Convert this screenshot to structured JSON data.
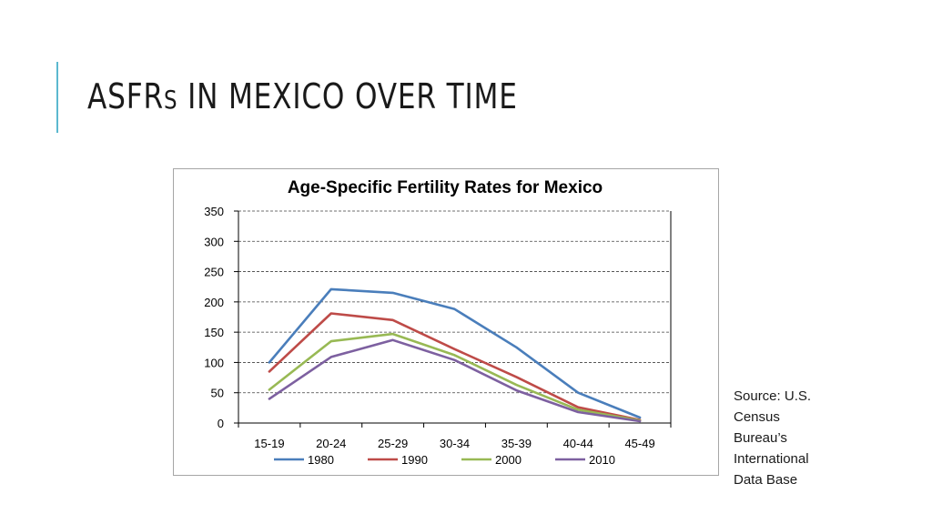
{
  "slide": {
    "title_main": "ASFR",
    "title_small": "S",
    "title_rest": " IN MEXICO OVER TIME",
    "accent_color": "#5bb8cf"
  },
  "source": {
    "lines": [
      "Source: U.S.",
      "Census",
      "Bureau’s",
      "International",
      "Data Base"
    ]
  },
  "chart_data": {
    "type": "line",
    "title": "Age-Specific Fertility Rates for Mexico",
    "xlabel": "",
    "ylabel": "",
    "categories": [
      "15-19",
      "20-24",
      "25-29",
      "30-34",
      "35-39",
      "40-44",
      "45-49"
    ],
    "ylim": [
      0,
      350
    ],
    "yticks": [
      0,
      50,
      100,
      150,
      200,
      250,
      300,
      350
    ],
    "grid": true,
    "legend_position": "bottom",
    "series": [
      {
        "name": "1980",
        "color": "#4a7ebb",
        "values": [
          100,
          221,
          215,
          188,
          125,
          50,
          9
        ]
      },
      {
        "name": "1990",
        "color": "#be4b48",
        "values": [
          85,
          181,
          170,
          122,
          76,
          26,
          5
        ]
      },
      {
        "name": "2000",
        "color": "#98b954",
        "values": [
          55,
          135,
          147,
          112,
          63,
          22,
          4
        ]
      },
      {
        "name": "2010",
        "color": "#7d60a0",
        "values": [
          40,
          109,
          137,
          104,
          54,
          18,
          3
        ]
      }
    ]
  }
}
